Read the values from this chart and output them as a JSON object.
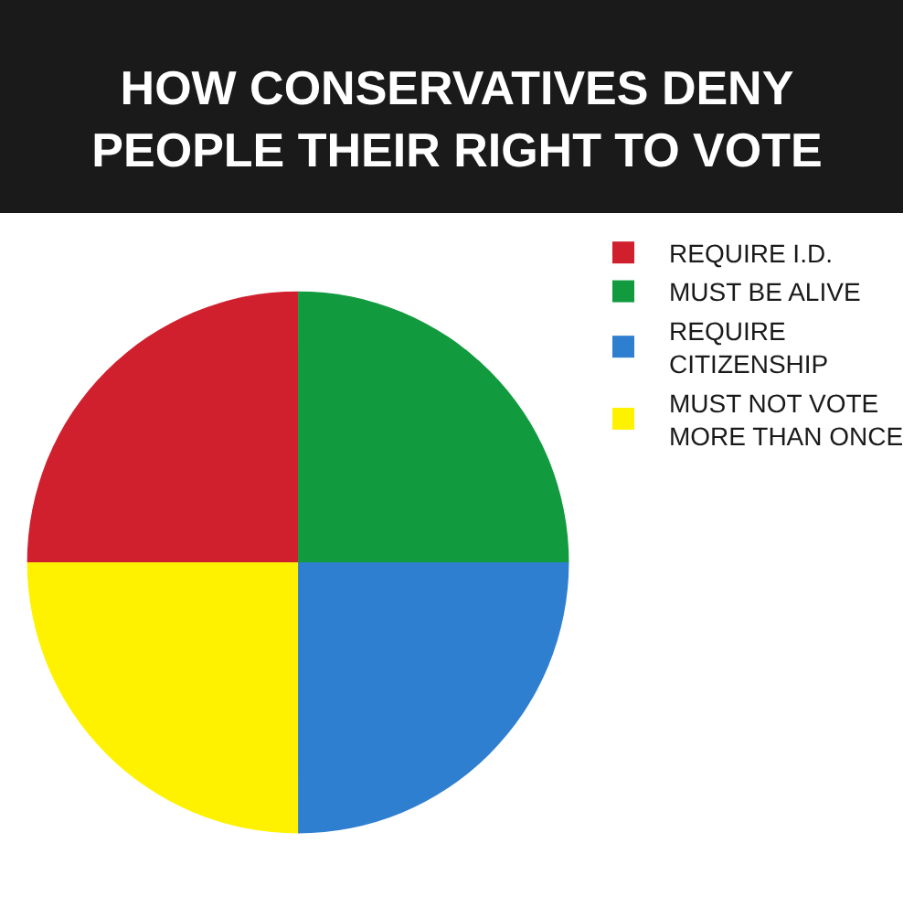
{
  "chart_data": {
    "type": "pie",
    "title": "HOW CONSERVATIVES DENY\nPEOPLE THEIR RIGHT TO VOTE",
    "categories": [
      "REQUIRE I.D.",
      "MUST BE ALIVE",
      "REQUIRE\nCITIZENSHIP",
      "MUST NOT VOTE\nMORE THAN ONCE"
    ],
    "values": [
      25,
      25,
      25,
      25
    ],
    "colors": [
      "#d0202e",
      "#119a3e",
      "#2f7fd0",
      "#fff200"
    ],
    "legend": "right"
  }
}
